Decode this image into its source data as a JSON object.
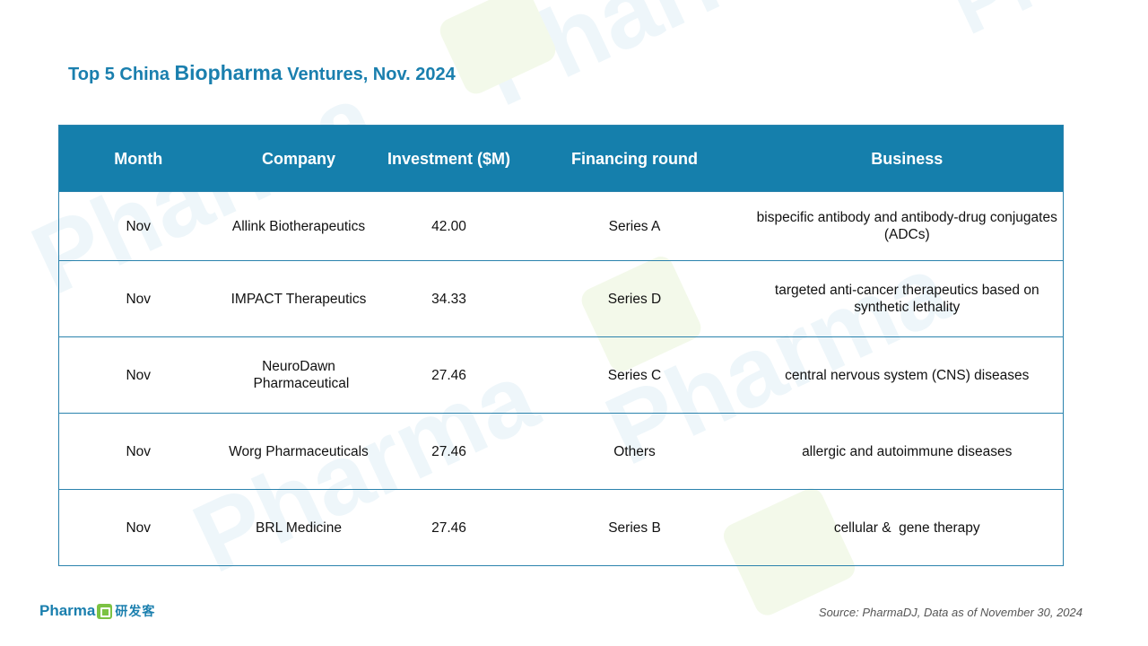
{
  "title": {
    "prefix": "Top 5 China ",
    "emphasis": "Biopharma",
    "suffix": " Ventures, Nov. 2024"
  },
  "table": {
    "headers": {
      "month": "Month",
      "company": "Company",
      "investment": "Investment ($M)",
      "round": "Financing round",
      "business": "Business"
    },
    "rows": [
      {
        "month": "Nov",
        "company": "Allink Biotherapeutics",
        "investment": "42.00",
        "round": "Series A",
        "business": "bispecific antibody and antibody-drug conjugates (ADCs)"
      },
      {
        "month": "Nov",
        "company": "IMPACT Therapeutics",
        "investment": "34.33",
        "round": "Series D",
        "business": "targeted anti-cancer therapeutics based on synthetic lethality"
      },
      {
        "month": "Nov",
        "company": "NeuroDawn Pharmaceutical",
        "investment": "27.46",
        "round": "Series C",
        "business": "central nervous system (CNS) diseases"
      },
      {
        "month": "Nov",
        "company": "Worg Pharmaceuticals",
        "investment": "27.46",
        "round": "Others",
        "business": "allergic and autoimmune diseases"
      },
      {
        "month": "Nov",
        "company": "BRL Medicine",
        "investment": "27.46",
        "round": "Series B",
        "business": "cellular &  gene therapy"
      }
    ]
  },
  "logo": {
    "brand": "Pharma",
    "chinese": "研发客"
  },
  "watermark": {
    "text": "Pharma",
    "chinese": "研发客"
  },
  "source": "Source: PharmaDJ, Data as of November 30, 2024",
  "colors": {
    "accent": "#1a7fae",
    "header_bg": "#157fac",
    "logo_green": "#7cc243"
  }
}
